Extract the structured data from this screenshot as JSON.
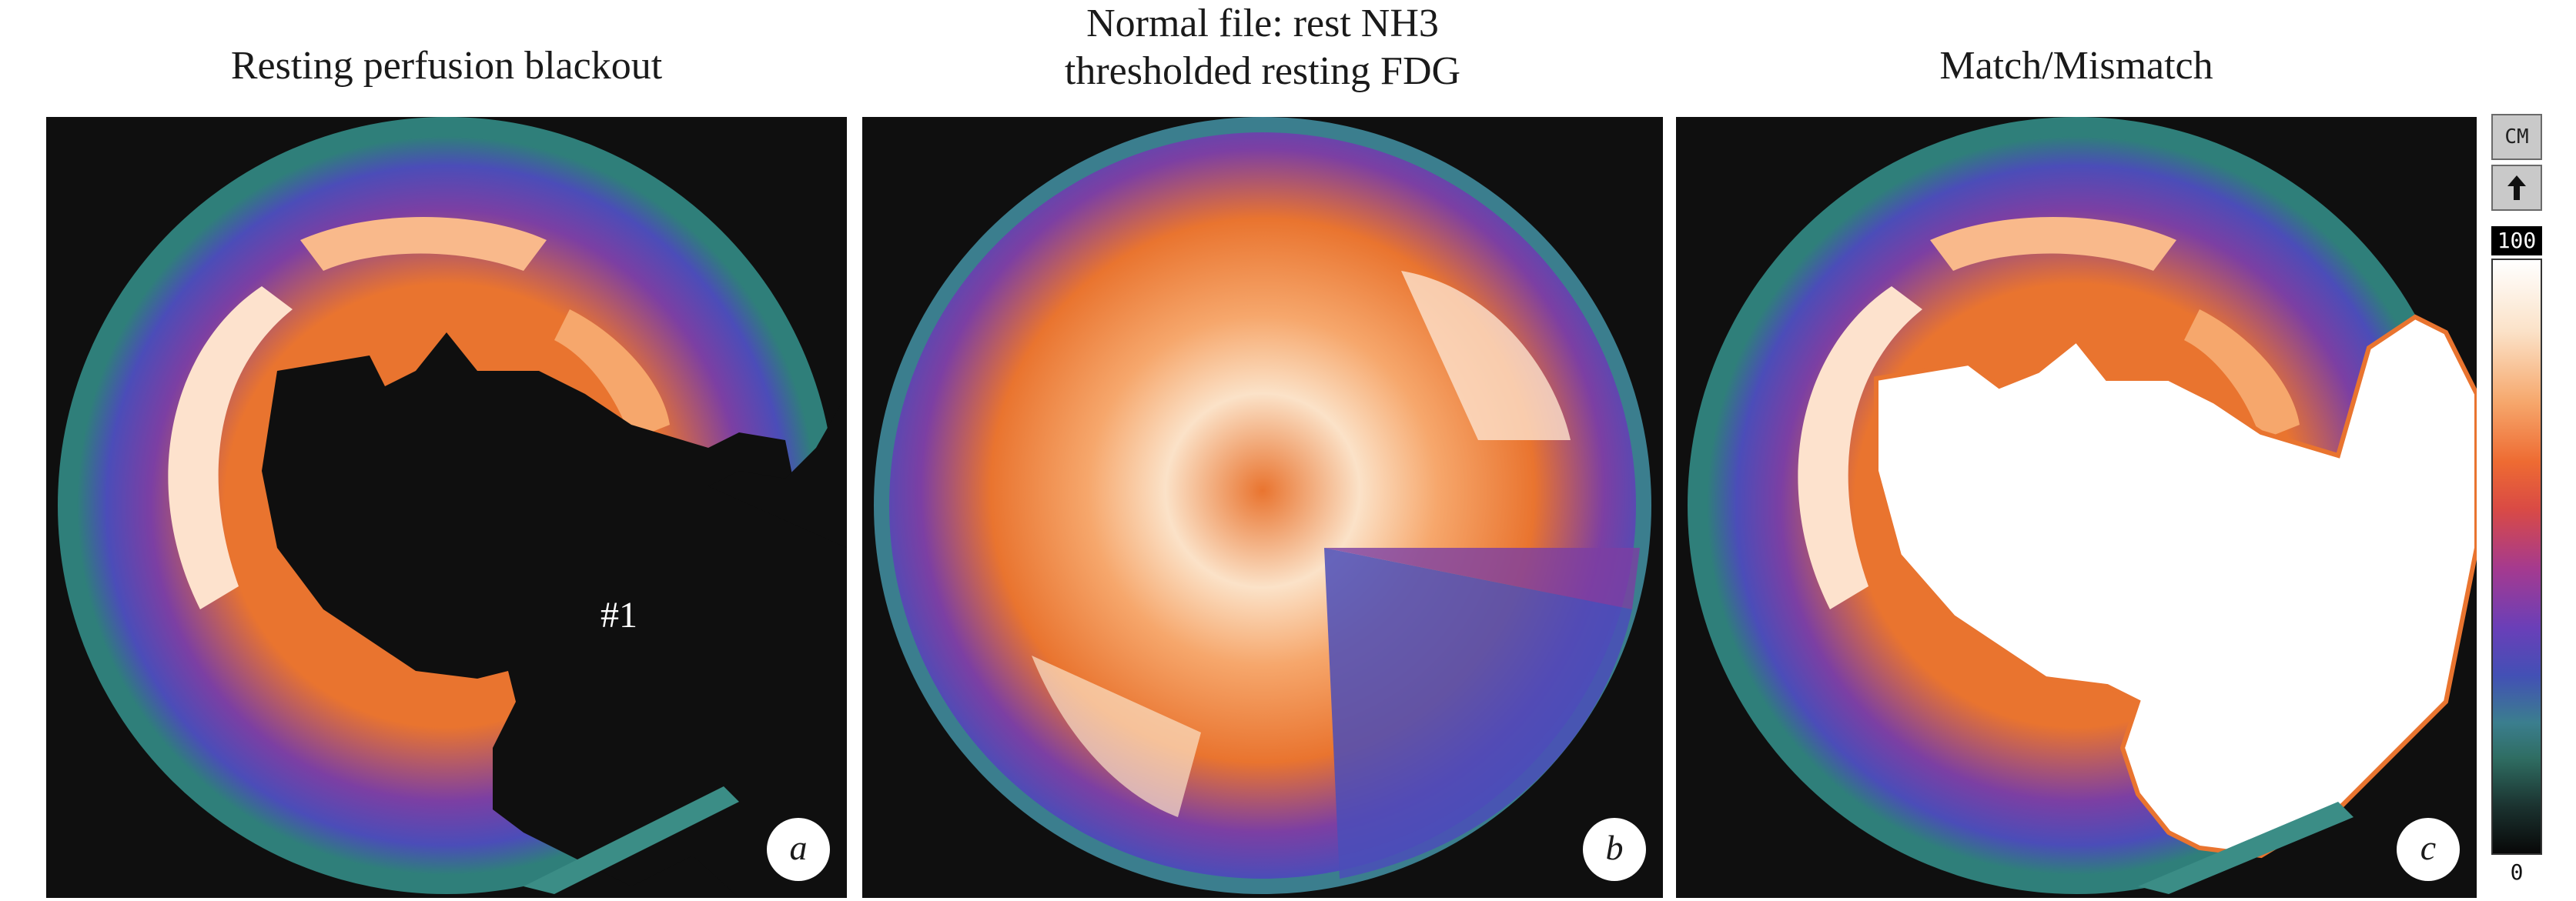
{
  "panels": [
    {
      "title": "Resting perfusion blackout",
      "badge": "a",
      "region_label": "#1"
    },
    {
      "title_line1": "Normal file: rest NH3",
      "title_line2": "thresholded resting FDG",
      "badge": "b"
    },
    {
      "title": "Match/Mismatch",
      "badge": "c"
    }
  ],
  "scale": {
    "button_cm": "CM",
    "button_up_icon": "up-arrow-icon",
    "max_label": "100",
    "min_label": "0"
  },
  "colors": {
    "background": "#0f0f0f",
    "ring_teal": "#2f7f7a",
    "purple": "#7c3fa3",
    "blue": "#4b4db8",
    "orange": "#e9742f",
    "peach": "#f9b98b",
    "white": "#ffffff"
  }
}
